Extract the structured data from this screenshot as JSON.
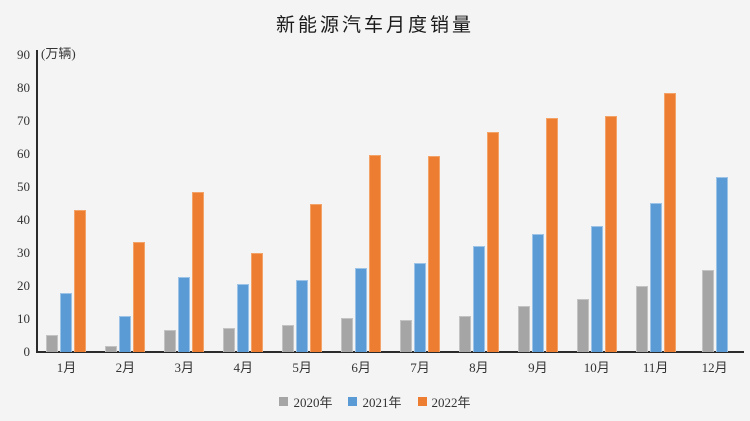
{
  "chart_data": {
    "type": "bar",
    "title": "新能源汽车月度销量",
    "unit_label": "(万辆)",
    "categories": [
      "1月",
      "2月",
      "3月",
      "4月",
      "5月",
      "6月",
      "7月",
      "8月",
      "9月",
      "10月",
      "11月",
      "12月"
    ],
    "series": [
      {
        "name": "2020年",
        "color": "#a5a5a5",
        "edge": "#c3c3c3",
        "values": [
          5.0,
          1.8,
          6.6,
          7.2,
          8.2,
          10.4,
          9.8,
          10.9,
          13.8,
          16.0,
          20.0,
          24.8
        ]
      },
      {
        "name": "2021年",
        "color": "#5b9bd5",
        "edge": "#9dc3e6",
        "values": [
          17.9,
          11.0,
          22.6,
          20.6,
          21.7,
          25.6,
          27.1,
          32.1,
          35.7,
          38.3,
          45.0,
          53.1
        ]
      },
      {
        "name": "2022年",
        "color": "#ed7d31",
        "edge": "#f4a368",
        "values": [
          43.1,
          33.4,
          48.4,
          29.9,
          44.7,
          59.6,
          59.3,
          66.6,
          70.8,
          71.4,
          78.6,
          null
        ]
      }
    ],
    "ylim": [
      0,
      90
    ],
    "yticks": [
      0,
      10,
      20,
      30,
      40,
      50,
      60,
      70,
      80,
      90
    ],
    "grid": false,
    "legend_position": "bottom",
    "background_color": "#f4f4f4",
    "axis_color": "#2b2b2b"
  }
}
